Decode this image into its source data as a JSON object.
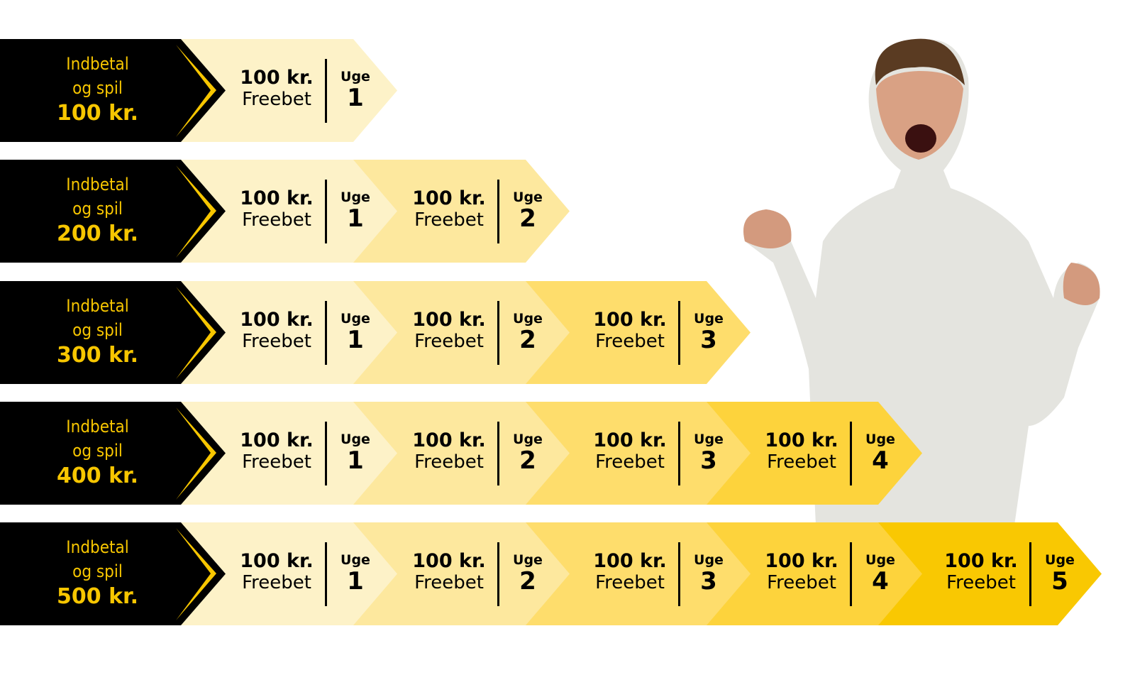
{
  "colors": {
    "label_bg": "#000000",
    "label_text": "#f7c600",
    "segments": [
      "#fdf2c8",
      "#fde89e",
      "#fedd6c",
      "#fdd33c",
      "#f9c802"
    ]
  },
  "rows": [
    {
      "line1": "Indbetal",
      "line2": "og spil",
      "amount": "100 kr.",
      "segments": [
        {
          "value": "100 kr.",
          "type": "Freebet",
          "week_label": "Uge",
          "week": "1"
        }
      ]
    },
    {
      "line1": "Indbetal",
      "line2": "og spil",
      "amount": "200 kr.",
      "segments": [
        {
          "value": "100 kr.",
          "type": "Freebet",
          "week_label": "Uge",
          "week": "1"
        },
        {
          "value": "100 kr.",
          "type": "Freebet",
          "week_label": "Uge",
          "week": "2"
        }
      ]
    },
    {
      "line1": "Indbetal",
      "line2": "og spil",
      "amount": "300 kr.",
      "segments": [
        {
          "value": "100 kr.",
          "type": "Freebet",
          "week_label": "Uge",
          "week": "1"
        },
        {
          "value": "100 kr.",
          "type": "Freebet",
          "week_label": "Uge",
          "week": "2"
        },
        {
          "value": "100 kr.",
          "type": "Freebet",
          "week_label": "Uge",
          "week": "3"
        }
      ]
    },
    {
      "line1": "Indbetal",
      "line2": "og spil",
      "amount": "400 kr.",
      "segments": [
        {
          "value": "100 kr.",
          "type": "Freebet",
          "week_label": "Uge",
          "week": "1"
        },
        {
          "value": "100 kr.",
          "type": "Freebet",
          "week_label": "Uge",
          "week": "2"
        },
        {
          "value": "100 kr.",
          "type": "Freebet",
          "week_label": "Uge",
          "week": "3"
        },
        {
          "value": "100 kr.",
          "type": "Freebet",
          "week_label": "Uge",
          "week": "4"
        }
      ]
    },
    {
      "line1": "Indbetal",
      "line2": "og spil",
      "amount": "500 kr.",
      "segments": [
        {
          "value": "100 kr.",
          "type": "Freebet",
          "week_label": "Uge",
          "week": "1"
        },
        {
          "value": "100 kr.",
          "type": "Freebet",
          "week_label": "Uge",
          "week": "2"
        },
        {
          "value": "100 kr.",
          "type": "Freebet",
          "week_label": "Uge",
          "week": "3"
        },
        {
          "value": "100 kr.",
          "type": "Freebet",
          "week_label": "Uge",
          "week": "4"
        },
        {
          "value": "100 kr.",
          "type": "Freebet",
          "week_label": "Uge",
          "week": "5"
        }
      ]
    }
  ]
}
